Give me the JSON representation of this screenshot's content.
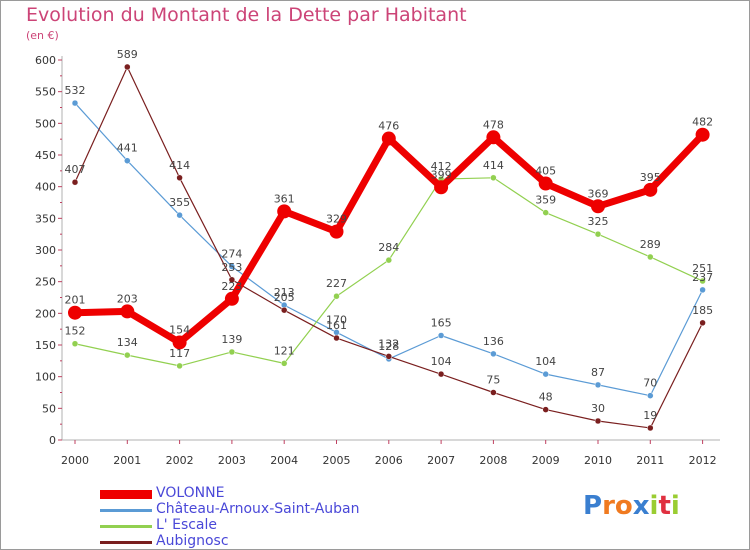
{
  "title": "Evolution du Montant de la Dette par Habitant",
  "subtitle": "(en €)",
  "logo": {
    "letters": [
      "P",
      "r",
      "o",
      "x",
      "i",
      "t",
      "i"
    ],
    "colors": [
      "#3a7fd0",
      "#f07a20",
      "#f07a20",
      "#3a7fd0",
      "#9acd32",
      "#e03040",
      "#9acd32"
    ]
  },
  "chart_data": {
    "type": "line",
    "categories": [
      "2000",
      "2001",
      "2002",
      "2003",
      "2004",
      "2005",
      "2006",
      "2007",
      "2008",
      "2009",
      "2010",
      "2011",
      "2012"
    ],
    "ylim": [
      0,
      600
    ],
    "yticks": [
      "0",
      "50",
      "100",
      "150",
      "200",
      "250",
      "300",
      "350",
      "400",
      "450",
      "500",
      "550",
      "600"
    ],
    "grid": false,
    "legend_position": "bottom-left",
    "series": [
      {
        "name": "VOLONNE",
        "color": "#ee0000",
        "values": [
          201,
          203,
          154,
          223,
          361,
          329,
          476,
          399,
          478,
          405,
          369,
          395,
          482
        ],
        "labels": [
          "201",
          "203",
          "154",
          "223",
          "361",
          "329",
          "476",
          "399",
          "478",
          "405",
          "369",
          "395",
          "482"
        ]
      },
      {
        "name": "Château-Arnoux-Saint-Auban",
        "color": "#5b9bd5",
        "values": [
          532,
          441,
          355,
          274,
          213,
          170,
          128,
          165,
          136,
          104,
          87,
          70,
          237
        ],
        "labels": [
          "532",
          "441",
          "355",
          "274",
          "213",
          "170",
          "128",
          "165",
          "136",
          "104",
          "87",
          "70",
          "237"
        ]
      },
      {
        "name": "L' Escale",
        "color": "#92d050",
        "values": [
          152,
          134,
          117,
          139,
          121,
          227,
          284,
          412,
          414,
          359,
          325,
          289,
          251
        ],
        "labels": [
          "152",
          "134",
          "117",
          "139",
          "121",
          "227",
          "284",
          "412",
          "414",
          "359",
          "325",
          "289",
          "251"
        ]
      },
      {
        "name": "Aubignosc",
        "color": "#7a1f1f",
        "values": [
          407,
          589,
          414,
          253,
          205,
          161,
          132,
          104,
          75,
          48,
          30,
          19,
          185
        ],
        "labels": [
          "407",
          "589",
          "414",
          "253",
          "205",
          "161",
          "132",
          "104",
          "75",
          "48",
          "30",
          "19",
          "185"
        ]
      }
    ]
  }
}
